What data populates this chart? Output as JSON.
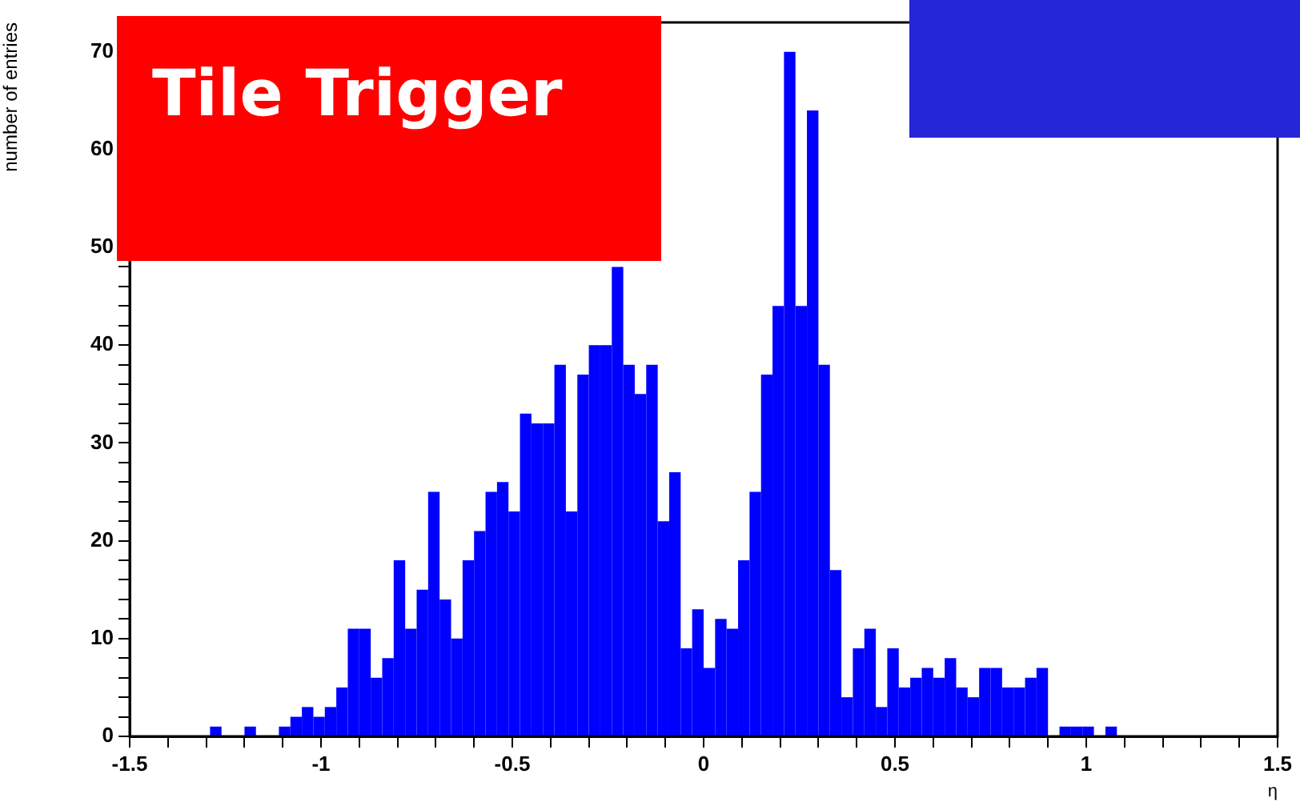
{
  "chart_data": {
    "type": "histogram",
    "xlabel": "η",
    "ylabel": "number of entries",
    "color": "#0000ff",
    "annotations": [
      "Tile Trigger"
    ],
    "bins": [
      -1.5,
      -1.47,
      -1.44,
      -1.41,
      -1.38,
      -1.35,
      -1.32,
      -1.29,
      -1.26,
      -1.23,
      -1.2,
      -1.17,
      -1.14,
      -1.11,
      -1.08,
      -1.05,
      -1.02,
      -0.99,
      -0.96,
      -0.93,
      -0.9,
      -0.87,
      -0.84,
      -0.81,
      -0.78,
      -0.75,
      -0.72,
      -0.69,
      -0.66,
      -0.63,
      -0.6,
      -0.57,
      -0.54,
      -0.51,
      -0.48,
      -0.45,
      -0.42,
      -0.39,
      -0.36,
      -0.33,
      -0.3,
      -0.27,
      -0.24,
      -0.21,
      -0.18,
      -0.15,
      -0.12,
      -0.09,
      -0.06,
      -0.03,
      0,
      0.03,
      0.06,
      0.09,
      0.12,
      0.15,
      0.18,
      0.21,
      0.24,
      0.27,
      0.3,
      0.33,
      0.36,
      0.39,
      0.42,
      0.45,
      0.48,
      0.51,
      0.54,
      0.57,
      0.6,
      0.63,
      0.66,
      0.69,
      0.72,
      0.75,
      0.78,
      0.81,
      0.84,
      0.87,
      0.9,
      0.93,
      0.96,
      0.99,
      1.02,
      1.05,
      1.08,
      1.11,
      1.14,
      1.17,
      1.2,
      1.23,
      1.26,
      1.29,
      1.32,
      1.35,
      1.38,
      1.41,
      1.44,
      1.47,
      1.5
    ],
    "values": [
      0,
      0,
      0,
      0,
      0,
      0,
      0,
      1,
      0,
      0,
      1,
      0,
      0,
      1,
      2,
      3,
      2,
      3,
      5,
      11,
      11,
      6,
      8,
      18,
      11,
      15,
      25,
      14,
      10,
      18,
      21,
      25,
      26,
      23,
      33,
      32,
      32,
      38,
      23,
      37,
      40,
      40,
      48,
      38,
      35,
      38,
      22,
      27,
      9,
      13,
      7,
      12,
      11,
      18,
      25,
      37,
      44,
      70,
      44,
      64,
      38,
      17,
      4,
      9,
      11,
      3,
      9,
      5,
      6,
      7,
      6,
      8,
      5,
      4,
      7,
      7,
      5,
      5,
      6,
      7,
      0,
      1,
      1,
      1,
      0,
      1,
      0,
      0,
      0,
      0,
      0,
      0,
      0,
      0,
      0,
      0,
      0,
      0,
      0,
      0
    ],
    "xlim": [
      -1.5,
      1.5
    ],
    "xticks": [
      -1.5,
      {
        "value": -1.4,
        "label": null
      },
      {
        "value": -1.3,
        "label": null
      },
      {
        "value": -1.2,
        "label": null
      },
      {
        "value": -1.1,
        "label": null
      },
      -1,
      {
        "value": -0.9,
        "label": null
      },
      {
        "value": -0.8,
        "label": null
      },
      {
        "value": -0.7,
        "label": null
      },
      {
        "value": -0.6,
        "label": null
      },
      -0.5,
      {
        "value": -0.4,
        "label": null
      },
      {
        "value": -0.3,
        "label": null
      },
      {
        "value": -0.2,
        "label": null
      },
      {
        "value": -0.1,
        "label": null
      },
      0,
      {
        "value": 0.1,
        "label": null
      },
      {
        "value": 0.2,
        "label": null
      },
      {
        "value": 0.3,
        "label": null
      },
      {
        "value": 0.4,
        "label": null
      },
      0.5,
      {
        "value": 0.6,
        "label": null
      },
      {
        "value": 0.7,
        "label": null
      },
      {
        "value": 0.8,
        "label": null
      },
      {
        "value": 0.9,
        "label": null
      },
      1,
      {
        "value": 1.1,
        "label": null
      },
      {
        "value": 1.2,
        "label": null
      },
      {
        "value": 1.3,
        "label": null
      },
      {
        "value": 1.4,
        "label": null
      },
      1.5
    ],
    "ylim": [
      0,
      73
    ],
    "yticks": [
      0,
      {
        "value": 2,
        "label": null
      },
      {
        "value": 4,
        "label": null
      },
      {
        "value": 6,
        "label": null
      },
      {
        "value": 8,
        "label": null
      },
      10,
      {
        "value": 12,
        "label": null
      },
      {
        "value": 14,
        "label": null
      },
      {
        "value": 16,
        "label": null
      },
      {
        "value": 18,
        "label": null
      },
      20,
      {
        "value": 22,
        "label": null
      },
      {
        "value": 24,
        "label": null
      },
      {
        "value": 26,
        "label": null
      },
      {
        "value": 28,
        "label": null
      },
      30,
      {
        "value": 32,
        "label": null
      },
      {
        "value": 34,
        "label": null
      },
      {
        "value": 36,
        "label": null
      },
      {
        "value": 38,
        "label": null
      },
      40,
      {
        "value": 42,
        "label": null
      },
      {
        "value": 44,
        "label": null
      },
      {
        "value": 46,
        "label": null
      },
      {
        "value": 48,
        "label": null
      },
      50,
      {
        "value": 52,
        "label": null
      },
      {
        "value": 54,
        "label": null
      },
      {
        "value": 56,
        "label": null
      },
      {
        "value": 58,
        "label": null
      },
      60,
      {
        "value": 62,
        "label": null
      },
      {
        "value": 64,
        "label": null
      },
      {
        "value": 66,
        "label": null
      },
      {
        "value": 68,
        "label": null
      },
      70,
      {
        "value": 72,
        "label": null
      }
    ],
    "grid": false,
    "legend": false
  }
}
